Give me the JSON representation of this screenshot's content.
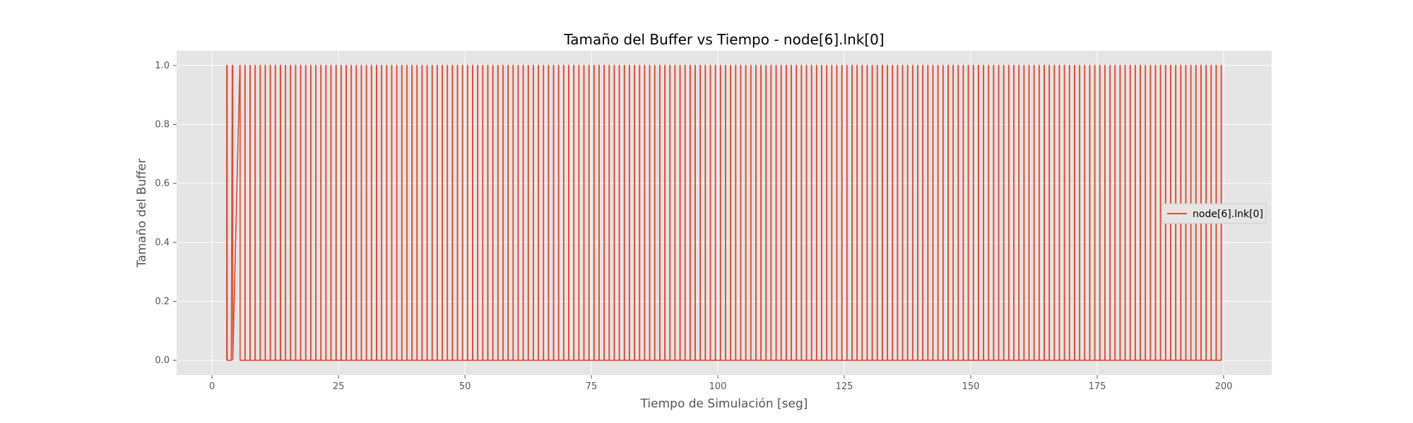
{
  "chart_data": {
    "type": "line",
    "title": "Tamaño del Buffer vs Tiempo - node[6].lnk[0]",
    "xlabel": "Tiempo de Simulación [seg]",
    "ylabel": "Tamaño del Buffer",
    "xlim": [
      -7,
      209.5
    ],
    "ylim": [
      -0.05,
      1.05
    ],
    "xticks": [
      0,
      25,
      50,
      75,
      100,
      125,
      150,
      175,
      200
    ],
    "yticks": [
      0.0,
      0.2,
      0.4,
      0.6,
      0.8,
      1.0
    ],
    "xtick_labels": [
      "0",
      "25",
      "50",
      "75",
      "100",
      "125",
      "150",
      "175",
      "200"
    ],
    "ytick_labels": [
      "0.0",
      "0.2",
      "0.4",
      "0.6",
      "0.8",
      "1.0"
    ],
    "grid": true,
    "legend_position": "center-right",
    "series": [
      {
        "name": "node[6].lnk[0]",
        "color": "#E24A33",
        "pattern": "buffer alternates between 0 and 1 for every packet",
        "events": [
          {
            "x": 2.9,
            "y": 0
          },
          {
            "x": 2.9,
            "y": 1
          },
          {
            "x": 3.0,
            "y": 1
          },
          {
            "x": 3.0,
            "y": 0
          },
          {
            "x": 3.8,
            "y": 0
          },
          {
            "x": 4.0,
            "y": 1
          },
          {
            "x": 4.1,
            "y": 1
          },
          {
            "x": 4.1,
            "y": 0
          },
          {
            "x": 4.1,
            "y": 0
          },
          {
            "x": 5.5,
            "y": 1
          }
        ],
        "periodic": {
          "start": 5.5,
          "end": 199.9,
          "period": 1.0,
          "pulse_width": 0.05,
          "high": 1,
          "low": 0
        }
      }
    ]
  }
}
